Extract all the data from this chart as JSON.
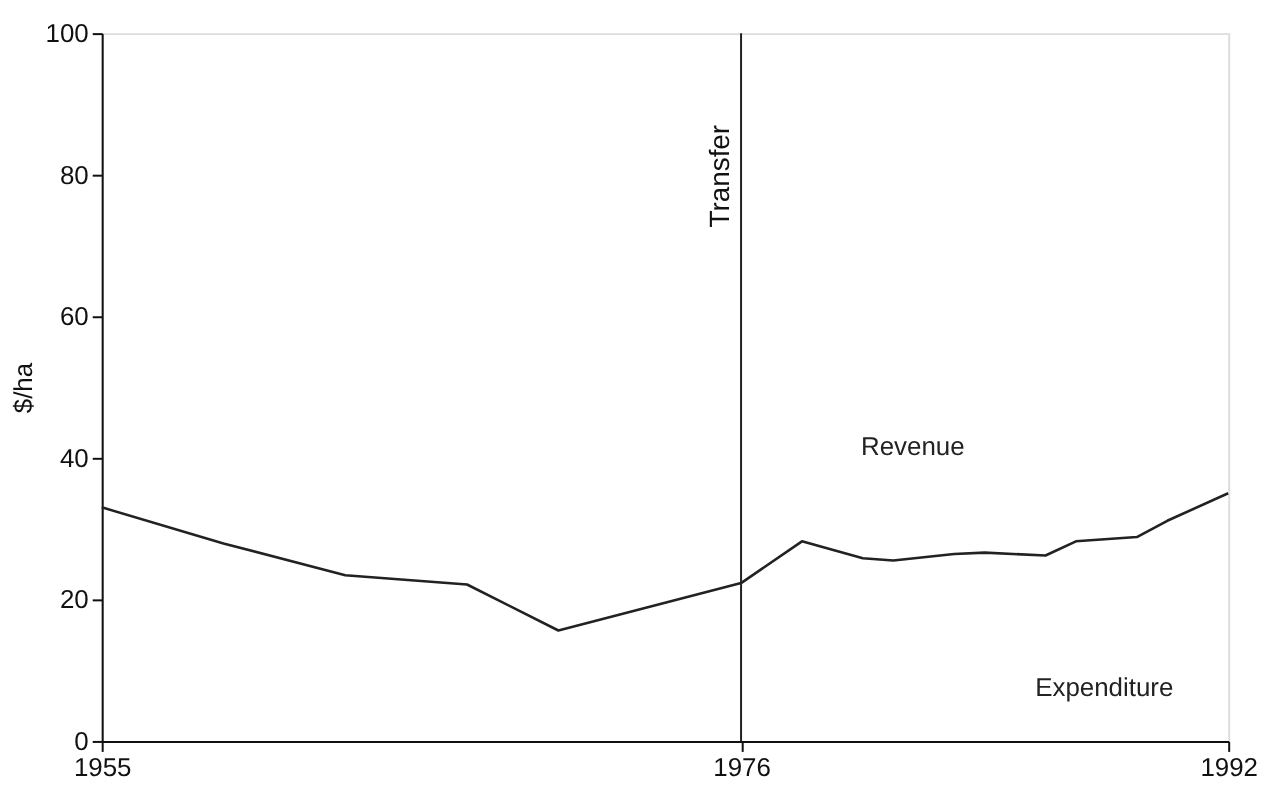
{
  "chart_data": {
    "type": "line",
    "ylabel": "$/ha",
    "x": [
      1955,
      1959,
      1963,
      1967,
      1970,
      1976,
      1978,
      1980,
      1981,
      1983,
      1984,
      1986,
      1987,
      1989,
      1990,
      1992
    ],
    "series": [
      {
        "color": "#222222",
        "values": [
          33.0,
          27.9,
          23.4,
          22.1,
          15.6,
          22.3,
          28.2,
          25.8,
          25.5,
          26.4,
          26.6,
          26.2,
          28.2,
          28.8,
          31.1,
          35.0
        ]
      }
    ],
    "xlim": [
      1955,
      1992
    ],
    "xticks": [
      1955,
      1976,
      1992
    ],
    "ylim": [
      0,
      100
    ],
    "yticks": [
      0,
      20,
      40,
      60,
      80,
      100
    ],
    "ref_lines": [
      {
        "axis": "x",
        "value": 1976,
        "label": "Transfer",
        "color": "#222222",
        "line_style": "solid"
      }
    ],
    "annotations": [
      "Revenue",
      "Expenditure"
    ],
    "grid": false,
    "marker": "none",
    "line_style": "solid"
  }
}
